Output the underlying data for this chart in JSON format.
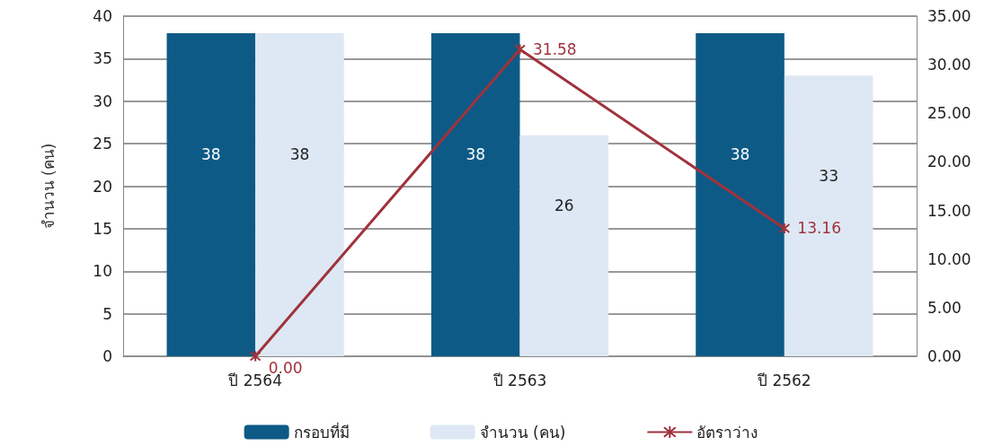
{
  "chart_data": {
    "type": "bar",
    "ylabel": "จำนวน (คน)",
    "categories": [
      "ปี 2564",
      "ปี 2563",
      "ปี 2562"
    ],
    "series": [
      {
        "name": "กรอบที่มี",
        "color": "#0e5a86",
        "values": [
          38,
          38,
          38
        ],
        "value_labels": [
          "38",
          "38",
          "38"
        ]
      },
      {
        "name": "จำนวน (คน)",
        "color": "#dde8f4",
        "values": [
          38,
          26,
          33
        ],
        "value_labels": [
          "38",
          "26",
          "33"
        ]
      },
      {
        "name": "อัตราว่าง",
        "type": "line",
        "axis": "y2",
        "color": "#a0323c",
        "values": [
          0,
          31.58,
          13.16
        ],
        "value_labels": [
          "0.00",
          "31.58",
          "13.16"
        ]
      }
    ],
    "ylim": [
      0,
      40
    ],
    "yticks": [
      0,
      5,
      10,
      15,
      20,
      25,
      30,
      35,
      40
    ],
    "y2lim": [
      0,
      35
    ],
    "y2ticks": [
      {
        "value": 0,
        "label": "0.00"
      },
      {
        "value": 5,
        "label": "5.00"
      },
      {
        "value": 10,
        "label": "10.00"
      },
      {
        "value": 15,
        "label": "15.00"
      },
      {
        "value": 20,
        "label": "20.00"
      },
      {
        "value": 25,
        "label": "25.00"
      },
      {
        "value": 30,
        "label": "30.00"
      },
      {
        "value": 35,
        "label": "35.00"
      }
    ],
    "grid": "y",
    "legend": "bottom",
    "marker": "cross",
    "line_style": "solid"
  }
}
